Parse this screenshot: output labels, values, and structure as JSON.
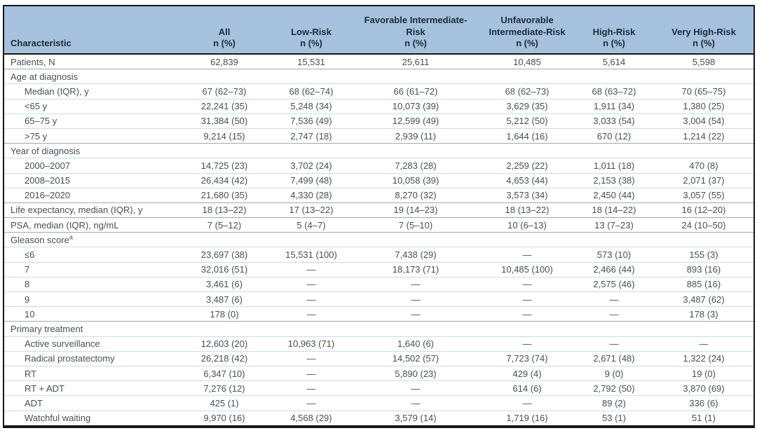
{
  "theme": {
    "header_bg": "#a5c1de",
    "header_text": "#1c2a36",
    "body_text": "#4a4e53",
    "row_divider_blue": "#c9dcec",
    "section_divider_gray": "#a3a7ad",
    "frame_border": "#161616"
  },
  "table": {
    "columns": [
      {
        "label": "Characteristic",
        "sublabel": ""
      },
      {
        "label": "All",
        "sublabel": "n (%)"
      },
      {
        "label": "Low-Risk",
        "sublabel": "n (%)"
      },
      {
        "label": "Favorable Intermediate-Risk",
        "sublabel": "n (%)"
      },
      {
        "label": "Unfavorable Intermediate-Risk",
        "sublabel": "n (%)"
      },
      {
        "label": "High-Risk",
        "sublabel": "n (%)"
      },
      {
        "label": "Very High-Risk",
        "sublabel": "n (%)"
      }
    ],
    "rows": [
      {
        "type": "data",
        "indent": false,
        "divider": "none",
        "label": "Patients, N",
        "values": [
          "62,839",
          "15,531",
          "25,611",
          "10,485",
          "5,614",
          "5,598"
        ]
      },
      {
        "type": "section",
        "divider": "gray",
        "label": "Age at diagnosis"
      },
      {
        "type": "data",
        "indent": true,
        "divider": "blue",
        "label": "Median (IQR), y",
        "values": [
          "67 (62–73)",
          "68 (62–74)",
          "66 (61–72)",
          "68 (62–73)",
          "68 (63–72)",
          "70 (65–75)"
        ]
      },
      {
        "type": "data",
        "indent": true,
        "divider": "blue",
        "label": "<65 y",
        "values": [
          "22,241 (35)",
          "5,248 (34)",
          "10,073 (39)",
          "3,629 (35)",
          "1,911 (34)",
          "1,380 (25)"
        ]
      },
      {
        "type": "data",
        "indent": true,
        "divider": "blue",
        "label": "65–75 y",
        "values": [
          "31,384 (50)",
          "7,536 (49)",
          "12,599 (49)",
          "5,212 (50)",
          "3,033 (54)",
          "3,004 (54)"
        ]
      },
      {
        "type": "data",
        "indent": true,
        "divider": "blue",
        "label": ">75 y",
        "values": [
          "9,214 (15)",
          "2,747 (18)",
          "2,939 (11)",
          "1,644 (16)",
          "670 (12)",
          "1,214 (22)"
        ]
      },
      {
        "type": "section",
        "divider": "gray",
        "label": "Year of diagnosis"
      },
      {
        "type": "data",
        "indent": true,
        "divider": "blue",
        "label": "2000–2007",
        "values": [
          "14,725 (23)",
          "3,702 (24)",
          "7,283 (28)",
          "2,259 (22)",
          "1,011 (18)",
          "470 (8)"
        ]
      },
      {
        "type": "data",
        "indent": true,
        "divider": "blue",
        "label": "2008–2015",
        "values": [
          "26,434 (42)",
          "7,499 (48)",
          "10,058 (39)",
          "4,653 (44)",
          "2,153 (38)",
          "2,071 (37)"
        ]
      },
      {
        "type": "data",
        "indent": true,
        "divider": "blue",
        "label": "2016–2020",
        "values": [
          "21,680 (35)",
          "4,330 (28)",
          "8,270 (32)",
          "3,573 (34)",
          "2,450 (44)",
          "3,057 (55)"
        ]
      },
      {
        "type": "data",
        "indent": false,
        "divider": "gray",
        "label": "Life expectancy, median (IQR), y",
        "values": [
          "18 (13–22)",
          "17 (13–22)",
          "19 (14–23)",
          "18 (13–22)",
          "18 (14–22)",
          "16 (12–20)"
        ]
      },
      {
        "type": "data",
        "indent": false,
        "divider": "gray",
        "label": "PSA, median (IQR), ng/mL",
        "values": [
          "7 (5–12)",
          "5 (4–7)",
          "7 (5–10)",
          "10 (6–13)",
          "13 (7–23)",
          "24 (10–50)"
        ]
      },
      {
        "type": "section",
        "divider": "gray",
        "label": "Gleason score",
        "sup": "a"
      },
      {
        "type": "data",
        "indent": true,
        "divider": "blue",
        "label": "≤6",
        "values": [
          "23,697 (38)",
          "15,531 (100)",
          "7,438 (29)",
          "—",
          "573 (10)",
          "155 (3)"
        ]
      },
      {
        "type": "data",
        "indent": true,
        "divider": "blue",
        "label": "7",
        "values": [
          "32,016 (51)",
          "—",
          "18,173 (71)",
          "10,485 (100)",
          "2,466 (44)",
          "893 (16)"
        ]
      },
      {
        "type": "data",
        "indent": true,
        "divider": "blue",
        "label": "8",
        "values": [
          "3,461 (6)",
          "—",
          "—",
          "—",
          "2,575 (46)",
          "885 (16)"
        ]
      },
      {
        "type": "data",
        "indent": true,
        "divider": "blue",
        "label": "9",
        "values": [
          "3,487 (6)",
          "—",
          "—",
          "—",
          "—",
          "3,487 (62)"
        ]
      },
      {
        "type": "data",
        "indent": true,
        "divider": "blue",
        "label": "10",
        "values": [
          "178 (0)",
          "—",
          "—",
          "—",
          "—",
          "178 (3)"
        ]
      },
      {
        "type": "section",
        "divider": "gray",
        "label": "Primary treatment"
      },
      {
        "type": "data",
        "indent": true,
        "divider": "blue",
        "label": "Active surveillance",
        "values": [
          "12,603 (20)",
          "10,963 (71)",
          "1,640 (6)",
          "—",
          "—",
          "—"
        ]
      },
      {
        "type": "data",
        "indent": true,
        "divider": "blue",
        "label": "Radical prostatectomy",
        "values": [
          "26,218 (42)",
          "—",
          "14,502 (57)",
          "7,723 (74)",
          "2,671 (48)",
          "1,322 (24)"
        ]
      },
      {
        "type": "data",
        "indent": true,
        "divider": "blue",
        "label": "RT",
        "values": [
          "6,347 (10)",
          "—",
          "5,890 (23)",
          "429 (4)",
          "9 (0)",
          "19 (0)"
        ]
      },
      {
        "type": "data",
        "indent": true,
        "divider": "blue",
        "label": "RT + ADT",
        "values": [
          "7,276 (12)",
          "—",
          "—",
          "614 (6)",
          "2,792 (50)",
          "3,870 (69)"
        ]
      },
      {
        "type": "data",
        "indent": true,
        "divider": "blue",
        "label": "ADT",
        "values": [
          "425 (1)",
          "—",
          "—",
          "—",
          "89 (2)",
          "336 (6)"
        ]
      },
      {
        "type": "data",
        "indent": true,
        "divider": "blue",
        "label": "Watchful waiting",
        "values": [
          "9,970 (16)",
          "4,568 (29)",
          "3,579 (14)",
          "1,719 (16)",
          "53 (1)",
          "51 (1)"
        ]
      }
    ]
  }
}
